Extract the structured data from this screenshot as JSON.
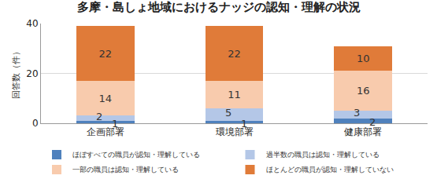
{
  "chart_data": {
    "type": "bar",
    "title": "多摩・島しょ地域におけるナッジの認知・理解の状況",
    "y_label": "回答数（件）",
    "categories": [
      "企画部署",
      "環境部署",
      "健康部署"
    ],
    "stacked": true,
    "data_labels": true,
    "grid": true,
    "legend": "bottom",
    "ylim": [
      0,
      40
    ],
    "yticks": [
      0,
      20,
      40
    ],
    "series": [
      {
        "name": "ほぼすべての職員が認知・理解している",
        "color": "#4f81bd",
        "values": [
          1,
          1,
          2
        ]
      },
      {
        "name": "過半数の職員は認知・理解している",
        "color": "#b4c7e7",
        "values": [
          2,
          5,
          3
        ]
      },
      {
        "name": "一部の職員は認知・理解している",
        "color": "#f8cbad",
        "values": [
          14,
          11,
          16
        ]
      },
      {
        "name": "ほとんどの職員が認知・理解していない",
        "color": "#e07b39",
        "values": [
          22,
          22,
          10
        ]
      }
    ]
  }
}
